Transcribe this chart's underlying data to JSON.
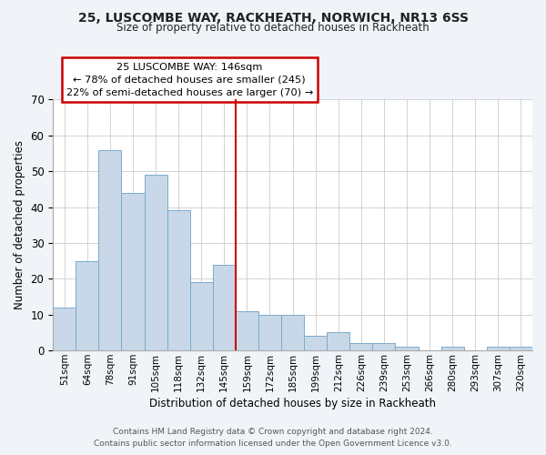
{
  "title_line1": "25, LUSCOMBE WAY, RACKHEATH, NORWICH, NR13 6SS",
  "title_line2": "Size of property relative to detached houses in Rackheath",
  "xlabel": "Distribution of detached houses by size in Rackheath",
  "ylabel": "Number of detached properties",
  "bar_labels": [
    "51sqm",
    "64sqm",
    "78sqm",
    "91sqm",
    "105sqm",
    "118sqm",
    "132sqm",
    "145sqm",
    "159sqm",
    "172sqm",
    "185sqm",
    "199sqm",
    "212sqm",
    "226sqm",
    "239sqm",
    "253sqm",
    "266sqm",
    "280sqm",
    "293sqm",
    "307sqm",
    "320sqm"
  ],
  "bar_values": [
    12,
    25,
    56,
    44,
    49,
    39,
    19,
    24,
    11,
    10,
    10,
    4,
    5,
    2,
    2,
    1,
    0,
    1,
    0,
    1,
    1
  ],
  "bar_color": "#c8d8e8",
  "bar_edge_color": "#7aabcc",
  "highlight_bar_index": 7,
  "highlight_line_color": "#cc0000",
  "annotation_title": "25 LUSCOMBE WAY: 146sqm",
  "annotation_line1": "← 78% of detached houses are smaller (245)",
  "annotation_line2": "22% of semi-detached houses are larger (70) →",
  "annotation_box_color": "#ffffff",
  "annotation_box_edge_color": "#cc0000",
  "ylim": [
    0,
    70
  ],
  "yticks": [
    0,
    10,
    20,
    30,
    40,
    50,
    60,
    70
  ],
  "footer_line1": "Contains HM Land Registry data © Crown copyright and database right 2024.",
  "footer_line2": "Contains public sector information licensed under the Open Government Licence v3.0.",
  "background_color": "#f0f4f8",
  "plot_background_color": "#ffffff"
}
